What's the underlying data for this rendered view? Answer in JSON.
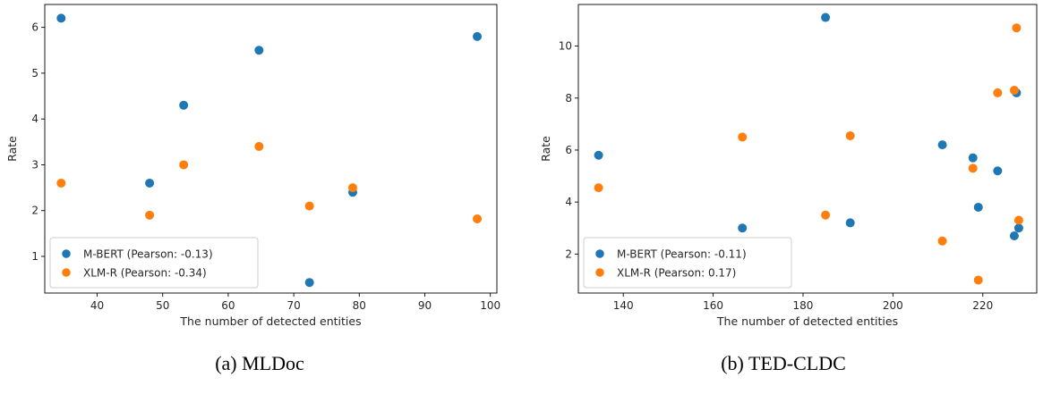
{
  "chart_data": [
    {
      "type": "scatter",
      "caption": "(a) MLDoc",
      "xlabel": "The number of detected entities",
      "ylabel": "Rate",
      "xlim": [
        32,
        101
      ],
      "ylim": [
        0.2,
        6.5
      ],
      "xticks": [
        40,
        50,
        60,
        70,
        80,
        90,
        100
      ],
      "yticks": [
        1,
        2,
        3,
        4,
        5,
        6
      ],
      "legend_position": "lower-left",
      "series": [
        {
          "name": "M-BERT (Pearson: -0.13)",
          "color": "#1f77b4",
          "x": [
            34.5,
            48,
            53.2,
            64.7,
            72.4,
            79,
            98
          ],
          "y": [
            6.2,
            2.6,
            4.3,
            5.5,
            0.43,
            2.4,
            5.8
          ]
        },
        {
          "name": "XLM-R (Pearson: -0.34)",
          "color": "#ff7f0e",
          "x": [
            34.5,
            48,
            53.2,
            64.7,
            72.4,
            79,
            98
          ],
          "y": [
            2.6,
            1.9,
            3.0,
            3.4,
            2.1,
            2.5,
            1.82
          ]
        }
      ]
    },
    {
      "type": "scatter",
      "caption": "(b) TED-CLDC",
      "xlabel": "The number of detected entities",
      "ylabel": "Rate",
      "xlim": [
        130,
        232
      ],
      "ylim": [
        0.5,
        11.6
      ],
      "xticks": [
        140,
        160,
        180,
        200,
        220
      ],
      "yticks": [
        2,
        4,
        6,
        8,
        10
      ],
      "legend_position": "lower-left",
      "series": [
        {
          "name": "M-BERT (Pearson: -0.11)",
          "color": "#1f77b4",
          "x": [
            134.5,
            166.5,
            185,
            190.5,
            211,
            217.8,
            219,
            223.3,
            227,
            227.5,
            228
          ],
          "y": [
            5.8,
            3.0,
            11.1,
            3.2,
            6.2,
            5.7,
            3.8,
            5.2,
            2.7,
            8.2,
            3.0
          ]
        },
        {
          "name": "XLM-R (Pearson: 0.17)",
          "color": "#ff7f0e",
          "x": [
            134.5,
            166.5,
            185,
            190.5,
            211,
            217.8,
            219,
            223.3,
            227,
            227.5,
            228
          ],
          "y": [
            4.55,
            6.5,
            3.5,
            6.55,
            2.5,
            5.3,
            1.0,
            8.2,
            8.3,
            10.7,
            3.3
          ]
        }
      ]
    }
  ]
}
